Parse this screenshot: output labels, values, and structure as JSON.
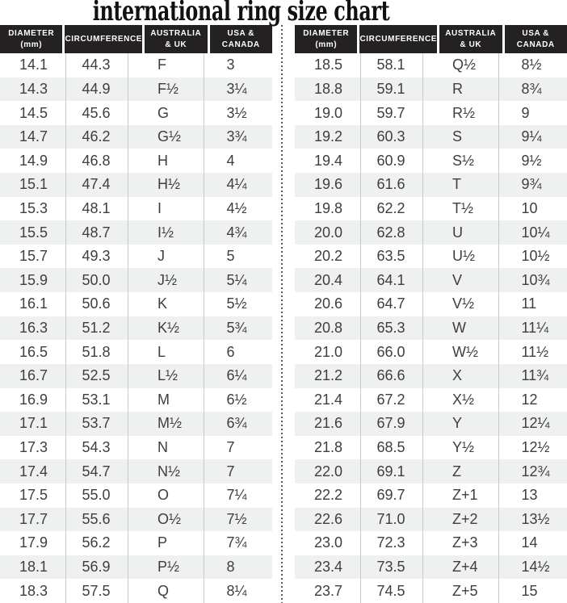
{
  "title": "international ring size chart",
  "colors": {
    "header_bg": "#242122",
    "header_text": "#ffffff",
    "stripe": "#eff0f0",
    "body_text": "#3e3e40",
    "column_line": "#c9cbcb",
    "dot": "#55565a",
    "title_text": "#111111"
  },
  "header_columns": [
    {
      "lines": [
        "DIAMETER",
        "(mm)"
      ]
    },
    {
      "lines": [
        "CIRCUMFERENCE"
      ]
    },
    {
      "lines": [
        "AUSTRALIA",
        "& UK"
      ]
    },
    {
      "lines": [
        "USA &",
        "CANADA"
      ]
    }
  ],
  "chart_data": {
    "type": "table",
    "title": "international ring size chart",
    "columns": [
      "Diameter (mm)",
      "Circumference",
      "Australia & UK",
      "USA & Canada"
    ],
    "layout": "two side-by-side panels of 23 rows each, separated by a vertical dotted line",
    "rows": [
      [
        "14.1",
        "44.3",
        "F",
        "3"
      ],
      [
        "14.3",
        "44.9",
        "F½",
        "3¼"
      ],
      [
        "14.5",
        "45.6",
        "G",
        "3½"
      ],
      [
        "14.7",
        "46.2",
        "G½",
        "3¾"
      ],
      [
        "14.9",
        "46.8",
        "H",
        "4"
      ],
      [
        "15.1",
        "47.4",
        "H½",
        "4¼"
      ],
      [
        "15.3",
        "48.1",
        "I",
        "4½"
      ],
      [
        "15.5",
        "48.7",
        "I½",
        "4¾"
      ],
      [
        "15.7",
        "49.3",
        "J",
        "5"
      ],
      [
        "15.9",
        "50.0",
        "J½",
        "5¼"
      ],
      [
        "16.1",
        "50.6",
        "K",
        "5½"
      ],
      [
        "16.3",
        "51.2",
        "K½",
        "5¾"
      ],
      [
        "16.5",
        "51.8",
        "L",
        "6"
      ],
      [
        "16.7",
        "52.5",
        "L½",
        "6¼"
      ],
      [
        "16.9",
        "53.1",
        "M",
        "6½"
      ],
      [
        "17.1",
        "53.7",
        "M½",
        "6¾"
      ],
      [
        "17.3",
        "54.3",
        "N",
        "7"
      ],
      [
        "17.4",
        "54.7",
        "N½",
        "7"
      ],
      [
        "17.5",
        "55.0",
        "O",
        "7¼"
      ],
      [
        "17.7",
        "55.6",
        "O½",
        "7½"
      ],
      [
        "17.9",
        "56.2",
        "P",
        "7¾"
      ],
      [
        "18.1",
        "56.9",
        "P½",
        "8"
      ],
      [
        "18.3",
        "57.5",
        "Q",
        "8¼"
      ],
      [
        "18.5",
        "58.1",
        "Q½",
        "8½"
      ],
      [
        "18.8",
        "59.1",
        "R",
        "8¾"
      ],
      [
        "19.0",
        "59.7",
        "R½",
        "9"
      ],
      [
        "19.2",
        "60.3",
        "S",
        "9¼"
      ],
      [
        "19.4",
        "60.9",
        "S½",
        "9½"
      ],
      [
        "19.6",
        "61.6",
        "T",
        "9¾"
      ],
      [
        "19.8",
        "62.2",
        "T½",
        "10"
      ],
      [
        "20.0",
        "62.8",
        "U",
        "10¼"
      ],
      [
        "20.2",
        "63.5",
        "U½",
        "10½"
      ],
      [
        "20.4",
        "64.1",
        "V",
        "10¾"
      ],
      [
        "20.6",
        "64.7",
        "V½",
        "11"
      ],
      [
        "20.8",
        "65.3",
        "W",
        "11¼"
      ],
      [
        "21.0",
        "66.0",
        "W½",
        "11½"
      ],
      [
        "21.2",
        "66.6",
        "X",
        "11¾"
      ],
      [
        "21.4",
        "67.2",
        "X½",
        "12"
      ],
      [
        "21.6",
        "67.9",
        "Y",
        "12¼"
      ],
      [
        "21.8",
        "68.5",
        "Y½",
        "12½"
      ],
      [
        "22.0",
        "69.1",
        "Z",
        "12¾"
      ],
      [
        "22.2",
        "69.7",
        "Z+1",
        "13"
      ],
      [
        "22.6",
        "71.0",
        "Z+2",
        "13½"
      ],
      [
        "23.0",
        "72.3",
        "Z+3",
        "14"
      ],
      [
        "23.4",
        "73.5",
        "Z+4",
        "14½"
      ],
      [
        "23.7",
        "74.5",
        "Z+5",
        "15"
      ]
    ]
  }
}
